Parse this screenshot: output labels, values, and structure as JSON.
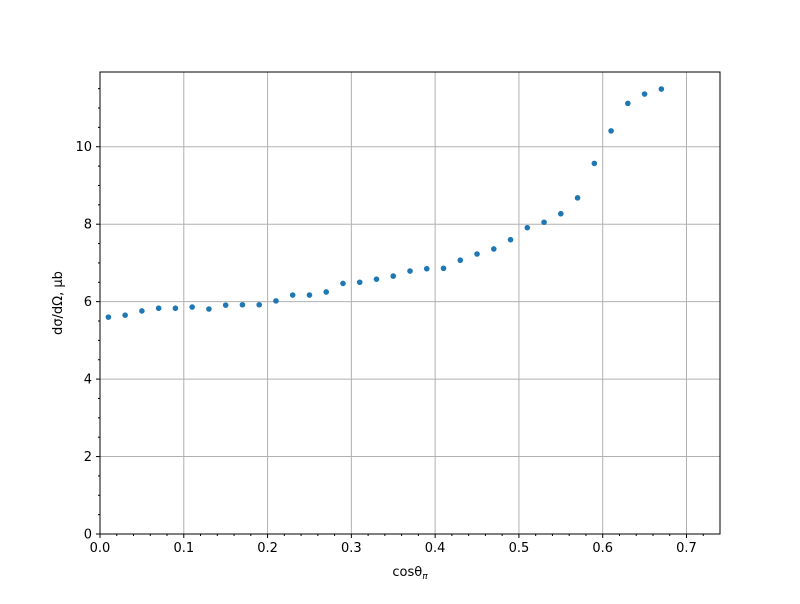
{
  "chart_data": {
    "type": "scatter",
    "xlabel": "cosθ",
    "xlabel_subscript": "π",
    "ylabel": "dσ/dΩ, μb",
    "xlim": [
      0.0,
      0.74
    ],
    "ylim": [
      0,
      11.93
    ],
    "xticks": [
      0.0,
      0.1,
      0.2,
      0.3,
      0.4,
      0.5,
      0.6,
      0.7
    ],
    "xtick_labels": [
      "0.0",
      "0.1",
      "0.2",
      "0.3",
      "0.4",
      "0.5",
      "0.6",
      "0.7"
    ],
    "yticks": [
      0,
      2,
      4,
      6,
      8,
      10
    ],
    "ytick_labels": [
      "0",
      "2",
      "4",
      "6",
      "8",
      "10"
    ],
    "grid": true,
    "marker_color": "#1f77b4",
    "series": [
      {
        "x": [
          0.01,
          0.03,
          0.05,
          0.07,
          0.09,
          0.11,
          0.13,
          0.15,
          0.17,
          0.19,
          0.21,
          0.23,
          0.25,
          0.27,
          0.29,
          0.31,
          0.33,
          0.35,
          0.37,
          0.39,
          0.41,
          0.43,
          0.45,
          0.47,
          0.49,
          0.51,
          0.53,
          0.55,
          0.57,
          0.59,
          0.61,
          0.63,
          0.65,
          0.67
        ],
        "y": [
          5.6,
          5.65,
          5.76,
          5.83,
          5.83,
          5.86,
          5.81,
          5.91,
          5.92,
          5.92,
          6.02,
          6.17,
          6.17,
          6.25,
          6.47,
          6.5,
          6.58,
          6.66,
          6.79,
          6.85,
          6.86,
          7.07,
          7.23,
          7.36,
          7.6,
          7.91,
          8.05,
          8.27,
          8.68,
          9.57,
          10.41,
          11.12,
          11.36,
          11.49
        ]
      }
    ]
  }
}
